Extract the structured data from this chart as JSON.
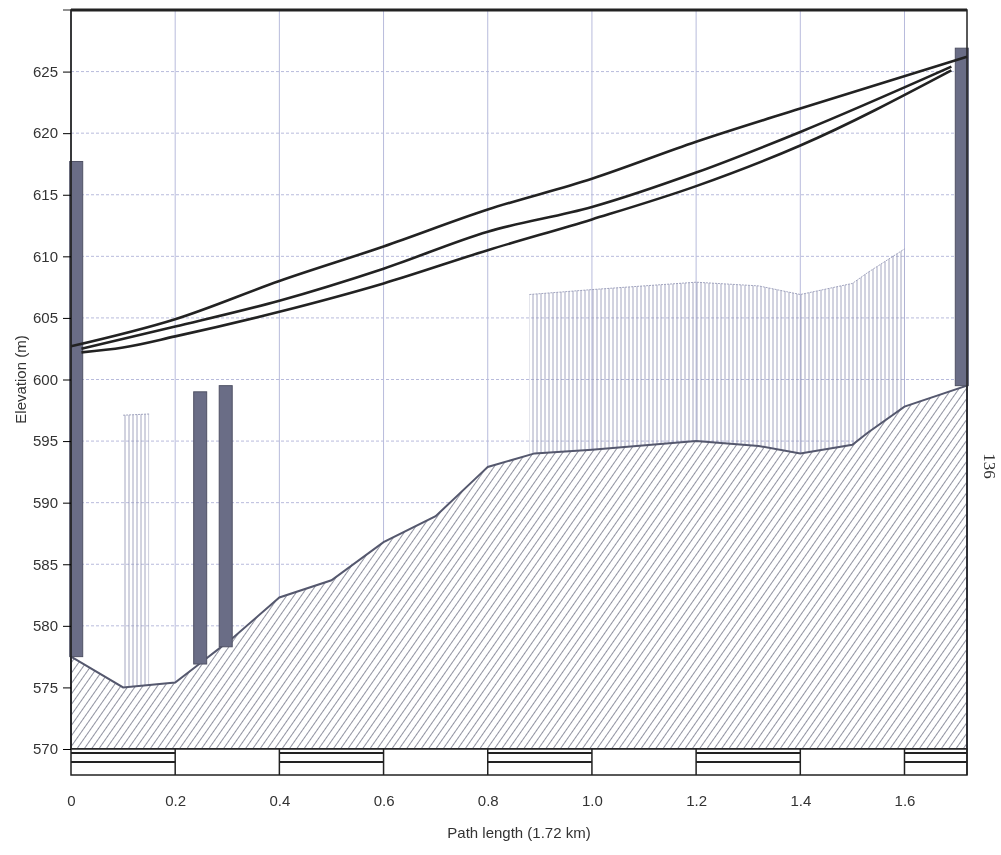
{
  "chart_data": {
    "type": "line",
    "xlabel": "Path length (1.72 km)",
    "ylabel": "Elevation (m)",
    "xlim": [
      0,
      1.72
    ],
    "ylim": [
      570,
      630
    ],
    "xticks": [
      0,
      0.2,
      0.4,
      0.6,
      0.8,
      {
        "value": 1,
        "label": "1.0"
      },
      1.2,
      1.4,
      1.6
    ],
    "yticks": [
      570,
      575,
      580,
      585,
      590,
      595,
      600,
      605,
      610,
      615,
      620,
      625
    ],
    "grid": true,
    "annotations": [
      "136"
    ],
    "series": [
      {
        "type": "area",
        "color": "#8c8fb0",
        "x": [
          0.1,
          0.15
        ],
        "values": [
          597.1,
          597.2
        ]
      },
      {
        "type": "area",
        "color": "#8c8fb0",
        "x": [
          0.88,
          1.0,
          1.2,
          1.32,
          1.4,
          1.5,
          1.53,
          1.6
        ],
        "values": [
          606.9,
          607.3,
          607.9,
          607.6,
          606.9,
          607.8,
          608.7,
          610.6
        ]
      },
      {
        "type": "area",
        "color": "#55586e",
        "x": [
          0,
          0.1,
          0.2,
          0.24,
          0.31,
          0.4,
          0.5,
          0.6,
          0.7,
          0.79,
          0.8,
          0.89,
          1.0,
          1.2,
          1.32,
          1.4,
          1.5,
          1.53,
          1.6,
          1.72
        ],
        "values": [
          577.5,
          575,
          575.4,
          576.7,
          579,
          582.3,
          583.7,
          586.8,
          588.9,
          592.5,
          592.9,
          594,
          594.3,
          595,
          594.6,
          594,
          594.7,
          595.7,
          597.8,
          599.5
        ]
      },
      {
        "type": "bar",
        "color": "#6a6d86",
        "x": [
          0.01,
          0.248,
          0.297,
          1.71
        ],
        "base": [
          577.5,
          576.9,
          578.3,
          599.5
        ],
        "values": [
          40.2,
          22.1,
          21.2,
          27.4
        ]
      },
      {
        "color": "#222222",
        "x": [
          0,
          0.2,
          0.4,
          0.6,
          0.8,
          1.0,
          1.2,
          1.4,
          1.72
        ],
        "values": [
          602.7,
          604.9,
          608.0,
          610.8,
          613.8,
          616.3,
          619.3,
          622.0,
          626.2
        ]
      },
      {
        "color": "#222222",
        "x": [
          0.02,
          0.2,
          0.4,
          0.6,
          0.8,
          1.0,
          1.2,
          1.4,
          1.69
        ],
        "values": [
          602.5,
          604.3,
          606.4,
          609.0,
          612.0,
          614.0,
          616.8,
          620.1,
          625.4
        ]
      },
      {
        "color": "#222222",
        "x": [
          0.02,
          0.1,
          0.2,
          0.4,
          0.6,
          0.8,
          1.0,
          1.2,
          1.4,
          1.69
        ],
        "values": [
          602.2,
          602.6,
          603.5,
          605.5,
          607.8,
          610.5,
          613.0,
          615.7,
          619.0,
          625.1
        ]
      }
    ]
  }
}
